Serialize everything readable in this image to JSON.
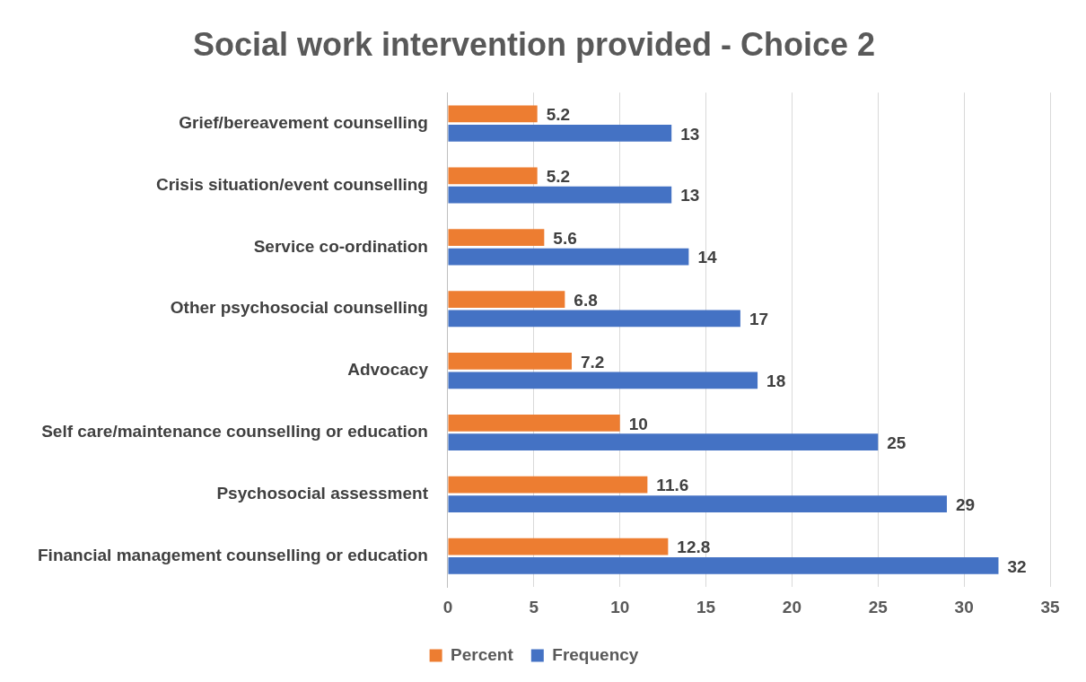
{
  "chart_data": {
    "type": "bar",
    "orientation": "horizontal",
    "title": "Social work intervention provided - Choice 2",
    "categories": [
      "Grief/bereavement counselling",
      "Crisis situation/event counselling",
      "Service co-ordination",
      "Other psychosocial counselling",
      "Advocacy",
      "Self care/maintenance counselling or education",
      "Psychosocial assessment",
      "Financial management counselling or education"
    ],
    "series": [
      {
        "name": "Percent",
        "color": "#ed7d31",
        "values": [
          5.2,
          5.2,
          5.6,
          6.8,
          7.2,
          10,
          11.6,
          12.8
        ]
      },
      {
        "name": "Frequency",
        "color": "#4472c4",
        "values": [
          13,
          13,
          14,
          17,
          18,
          25,
          29,
          32
        ]
      }
    ],
    "xlim": [
      0,
      35
    ],
    "xticks": [
      0,
      5,
      10,
      15,
      20,
      25,
      30,
      35
    ],
    "grid": "x",
    "legend": "bottom",
    "data_labels": true
  }
}
